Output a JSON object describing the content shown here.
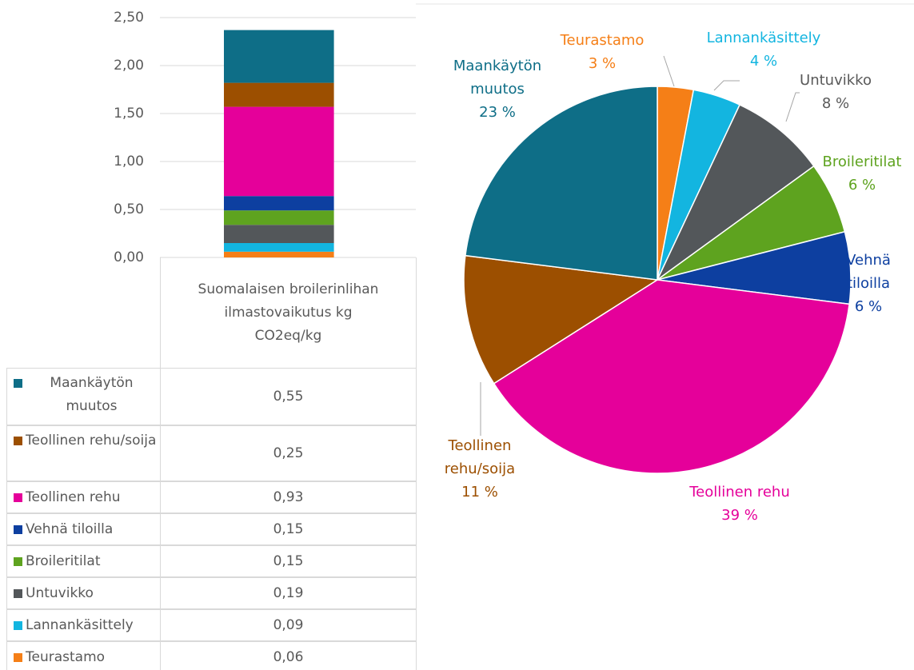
{
  "chart_data": [
    {
      "type": "bar",
      "stacked": true,
      "data_table": true,
      "grid": true,
      "categories": [
        "Suomalaisen broilerinlihan ilmastovaikutus kg CO2eq/kg"
      ],
      "series": [
        {
          "name": "Maankäytön muutos",
          "color": "#0e6e87",
          "values": [
            0.55
          ],
          "value_labels": [
            "0,55"
          ]
        },
        {
          "name": "Teollinen rehu/soija",
          "color": "#9c4f00",
          "values": [
            0.25
          ],
          "value_labels": [
            "0,25"
          ]
        },
        {
          "name": "Teollinen rehu",
          "color": "#e5009a",
          "values": [
            0.93
          ],
          "value_labels": [
            "0,93"
          ]
        },
        {
          "name": "Vehnä tiloilla",
          "color": "#0d3fa0",
          "values": [
            0.15
          ],
          "value_labels": [
            "0,15"
          ]
        },
        {
          "name": "Broileritilat",
          "color": "#5ea31f",
          "values": [
            0.15
          ],
          "value_labels": [
            "0,15"
          ]
        },
        {
          "name": "Untuvikko",
          "color": "#53575a",
          "values": [
            0.19
          ],
          "value_labels": [
            "0,19"
          ]
        },
        {
          "name": "Lannankäsittely",
          "color": "#13b5e0",
          "values": [
            0.09
          ],
          "value_labels": [
            "0,09"
          ]
        },
        {
          "name": "Teurastamo",
          "color": "#f57f17",
          "values": [
            0.06
          ],
          "value_labels": [
            "0,06"
          ]
        }
      ],
      "ylim": [
        0,
        2.5
      ],
      "yticks": [
        {
          "value": 0,
          "label": "0,00"
        },
        {
          "value": 0.5,
          "label": "0,50"
        },
        {
          "value": 1,
          "label": "1,00"
        },
        {
          "value": 1.5,
          "label": "1,50"
        },
        {
          "value": 2,
          "label": "2,00"
        },
        {
          "value": 2.5,
          "label": "2,50"
        }
      ]
    },
    {
      "type": "pie",
      "categories": [
        "Teurastamo",
        "Lannankäsittely",
        "Untuvikko",
        "Broileritilat",
        "Vehnä tiloilla",
        "Teollinen rehu",
        "Teollinen rehu/soija",
        "Maankäytön muutos"
      ],
      "values": [
        3,
        4,
        8,
        6,
        6,
        39,
        11,
        23
      ],
      "value_labels": [
        "3 %",
        "4 %",
        "8 %",
        "6 %",
        "6 %",
        "39 %",
        "11 %",
        "23 %"
      ],
      "colors": [
        "#f57f17",
        "#13b5e0",
        "#53575a",
        "#5ea31f",
        "#0d3fa0",
        "#e5009a",
        "#9c4f00",
        "#0e6e87"
      ]
    }
  ]
}
